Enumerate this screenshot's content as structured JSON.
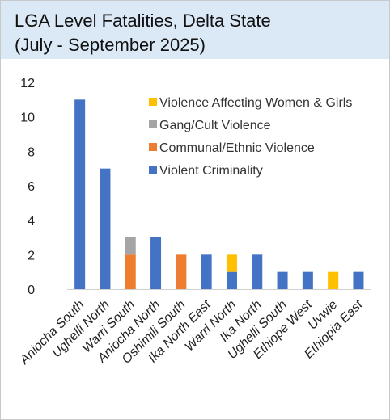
{
  "title_line1": "LGA Level Fatalities, Delta State",
  "title_line2": "(July - September 2025)",
  "chart_data": {
    "type": "bar",
    "stacked": true,
    "categories": [
      "Aniocha South",
      "Ughelli North",
      "Warri South",
      "Aniocha North",
      "Oshimili South",
      "Ika North East",
      "Warri North",
      "Ika North",
      "Ughelli South",
      "Ethiope West",
      "Uvwie",
      "Ethiopia East"
    ],
    "series": [
      {
        "name": "Violent Criminality",
        "color": "#4472c4",
        "values": [
          11,
          7,
          0,
          3,
          0,
          2,
          1,
          2,
          1,
          1,
          0,
          1
        ]
      },
      {
        "name": "Communal/Ethnic Violence",
        "color": "#ed7d31",
        "values": [
          0,
          0,
          2,
          0,
          2,
          0,
          0,
          0,
          0,
          0,
          0,
          0
        ]
      },
      {
        "name": "Gang/Cult Violence",
        "color": "#a5a5a5",
        "values": [
          0,
          0,
          1,
          0,
          0,
          0,
          0,
          0,
          0,
          0,
          0,
          0
        ]
      },
      {
        "name": "Violence Affecting Women & Girls",
        "color": "#ffc000",
        "values": [
          0,
          0,
          0,
          0,
          0,
          0,
          1,
          0,
          0,
          0,
          1,
          0
        ]
      }
    ],
    "legend_order": [
      "Violence Affecting Women & Girls",
      "Gang/Cult Violence",
      "Communal/Ethnic Violence",
      "Violent Criminality"
    ],
    "ylim": [
      0,
      12
    ],
    "yticks": [
      0,
      2,
      4,
      6,
      8,
      10,
      12
    ],
    "grid": false,
    "legend_position": "top-right"
  }
}
